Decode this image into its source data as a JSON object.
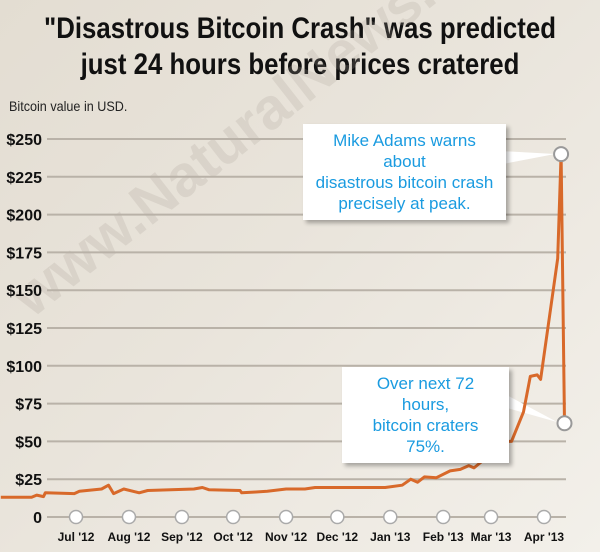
{
  "chart_data": {
    "type": "line",
    "title": "\"Disastrous Bitcoin Crash\" was predicted",
    "subtitle": "just 24 hours before prices cratered",
    "ylabel": "Bitcoin value in USD.",
    "xlabel": "",
    "x_unit": "days since Jul 1 2012",
    "ylim": [
      0,
      250
    ],
    "y_ticks": [
      0,
      25,
      50,
      75,
      100,
      125,
      150,
      175,
      200,
      225,
      250
    ],
    "y_tick_labels": [
      "0",
      "$25",
      "$50",
      "$75",
      "$100",
      "$125",
      "$150",
      "$175",
      "$200",
      "$225",
      "$250"
    ],
    "x_ticks": [
      0,
      31,
      62,
      92,
      123,
      153,
      184,
      215,
      243,
      274
    ],
    "x_tick_labels": [
      "Jul '12",
      "Aug '12",
      "Sep '12",
      "Oct '12",
      "Nov '12",
      "Dec '12",
      "Jan '13",
      "Feb '13",
      "Mar '13",
      "Apr '13"
    ],
    "grid": true,
    "series": [
      {
        "name": "Bitcoin value",
        "color": "#d8692a",
        "x": [
          -44,
          -26,
          -23,
          -19,
          -18,
          -1,
          2,
          15,
          19,
          22,
          28,
          37,
          42,
          69,
          74,
          78,
          96,
          97,
          104,
          112,
          123,
          134,
          140,
          156,
          181,
          191,
          196,
          200,
          204,
          211,
          219,
          225,
          230,
          233,
          239,
          242,
          248,
          255,
          262,
          266,
          270,
          272,
          282,
          284,
          286
        ],
        "y": [
          13,
          13,
          14.5,
          13.5,
          16,
          15.5,
          17,
          18.5,
          21,
          15.5,
          18.5,
          16,
          17.5,
          18.5,
          19.5,
          18,
          17.5,
          16,
          16.5,
          17,
          18.5,
          18.5,
          19.5,
          19.5,
          19.5,
          21,
          25,
          23,
          26.5,
          26,
          30.5,
          31.5,
          34,
          32.5,
          38,
          47.5,
          50,
          50,
          69.5,
          93,
          94,
          91,
          171,
          240,
          62
        ]
      }
    ],
    "annotations": [
      {
        "text_lines": [
          "Mike Adams warns about",
          "disastrous bitcoin crash",
          "precisely at peak."
        ],
        "x": 284,
        "y": 240
      },
      {
        "text_lines": [
          "Over next 72 hours,",
          "bitcoin craters 75%."
        ],
        "x": 286,
        "y": 62
      }
    ]
  },
  "watermark": "www.NaturalNews.com"
}
